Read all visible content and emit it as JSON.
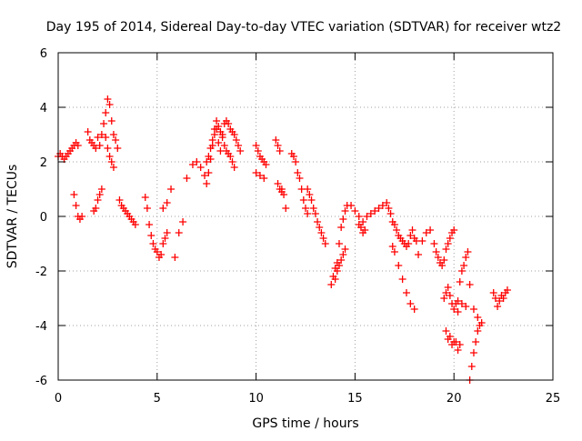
{
  "chart_data": {
    "type": "scatter",
    "title": "Day 195 of 2014, Sidereal Day-to-day VTEC variation (SDTVAR) for receiver wtz2",
    "xlabel": "GPS time / hours",
    "ylabel": "SDTVAR / TECUs",
    "xlim": [
      0,
      25
    ],
    "ylim": [
      -6,
      6
    ],
    "xticks": [
      0,
      5,
      10,
      15,
      20,
      25
    ],
    "yticks": [
      -6,
      -4,
      -2,
      0,
      2,
      4,
      6
    ],
    "xtick_labels": [
      "0",
      "5",
      "10",
      "15",
      "20",
      "25"
    ],
    "ytick_labels": [
      "-6",
      "-4",
      "-2",
      "0",
      "2",
      "4",
      "6"
    ],
    "grid": true,
    "marker": "plus",
    "color": "#ff0000",
    "series": [
      {
        "name": "SDTVAR",
        "x": [
          0.0,
          0.1,
          0.2,
          0.3,
          0.4,
          0.5,
          0.6,
          0.7,
          0.8,
          0.9,
          1.0,
          0.8,
          0.9,
          1.0,
          1.1,
          1.2,
          1.5,
          1.6,
          1.7,
          1.8,
          1.9,
          2.0,
          2.1,
          2.2,
          2.3,
          2.4,
          2.5,
          2.6,
          2.7,
          2.8,
          2.9,
          3.0,
          1.8,
          1.9,
          2.0,
          2.1,
          2.2,
          2.4,
          2.5,
          2.6,
          2.7,
          2.8,
          3.1,
          3.2,
          3.3,
          3.4,
          3.5,
          3.6,
          3.7,
          3.8,
          3.9,
          4.4,
          4.5,
          4.6,
          4.7,
          4.8,
          4.9,
          5.0,
          5.1,
          5.2,
          5.3,
          5.4,
          5.5,
          5.3,
          5.5,
          5.7,
          5.9,
          6.1,
          6.3,
          6.5,
          6.8,
          7.0,
          7.2,
          7.4,
          7.5,
          7.6,
          7.7,
          7.8,
          7.9,
          8.0,
          8.1,
          8.2,
          8.3,
          8.4,
          8.5,
          8.6,
          8.7,
          8.8,
          8.9,
          9.0,
          9.1,
          9.2,
          7.5,
          7.6,
          7.7,
          7.8,
          7.9,
          8.0,
          8.1,
          8.2,
          8.3,
          8.4,
          8.5,
          8.6,
          8.7,
          8.8,
          8.9,
          10.0,
          10.1,
          10.2,
          10.3,
          10.4,
          10.5,
          10.0,
          10.2,
          10.4,
          11.0,
          11.1,
          11.2,
          11.3,
          11.4,
          11.5,
          11.1,
          11.2,
          11.3,
          11.8,
          11.9,
          12.0,
          12.1,
          12.2,
          12.3,
          12.4,
          12.5,
          12.6,
          12.6,
          12.7,
          12.8,
          12.9,
          13.0,
          13.1,
          13.2,
          13.3,
          13.4,
          13.5,
          13.8,
          13.9,
          14.0,
          14.1,
          14.2,
          14.3,
          14.4,
          14.5,
          14.6,
          14.8,
          15.0,
          15.2,
          15.4,
          15.6,
          14.0,
          14.1,
          14.2,
          14.3,
          14.4,
          14.5,
          15.2,
          15.3,
          15.4,
          15.5,
          15.8,
          16.0,
          16.2,
          16.4,
          16.6,
          16.7,
          16.8,
          16.9,
          17.0,
          17.1,
          17.2,
          17.3,
          17.4,
          17.5,
          17.6,
          17.7,
          17.8,
          17.9,
          18.0,
          18.1,
          16.9,
          17.0,
          17.2,
          17.4,
          17.6,
          17.8,
          18.0,
          18.2,
          18.4,
          18.6,
          18.8,
          19.0,
          19.1,
          19.2,
          19.3,
          19.4,
          19.5,
          19.6,
          19.7,
          19.8,
          19.9,
          20.0,
          19.5,
          19.6,
          19.7,
          19.8,
          19.9,
          20.0,
          20.1,
          20.2,
          20.3,
          20.4,
          20.5,
          20.6,
          20.7,
          19.6,
          19.7,
          19.8,
          19.9,
          20.0,
          20.1,
          20.2,
          20.3,
          20.8,
          20.9,
          21.0,
          21.1,
          21.2,
          21.3,
          21.4,
          20.2,
          20.4,
          20.6,
          20.8,
          21.0,
          21.2,
          22.0,
          22.1,
          22.2,
          22.3,
          22.4,
          22.5,
          22.6,
          22.7
        ],
        "y": [
          2.2,
          2.3,
          2.2,
          2.1,
          2.2,
          2.3,
          2.4,
          2.5,
          2.6,
          2.7,
          2.6,
          0.8,
          0.4,
          0.0,
          -0.1,
          0.0,
          3.1,
          2.8,
          2.7,
          2.6,
          2.5,
          2.9,
          2.6,
          3.0,
          3.4,
          3.8,
          4.3,
          4.1,
          3.5,
          3.0,
          2.8,
          2.5,
          0.2,
          0.3,
          0.6,
          0.8,
          1.0,
          2.9,
          2.5,
          2.2,
          2.0,
          1.8,
          0.6,
          0.4,
          0.3,
          0.2,
          0.1,
          0.0,
          -0.1,
          -0.2,
          -0.3,
          0.7,
          0.3,
          -0.3,
          -0.7,
          -1.0,
          -1.2,
          -1.3,
          -1.5,
          -1.4,
          -1.0,
          -0.8,
          -0.6,
          0.3,
          0.5,
          1.0,
          -1.5,
          -0.6,
          -0.2,
          1.4,
          1.9,
          2.0,
          1.8,
          1.5,
          1.2,
          1.6,
          2.1,
          2.6,
          3.2,
          3.5,
          2.7,
          2.4,
          3.0,
          3.4,
          3.5,
          3.4,
          3.2,
          3.1,
          3.0,
          2.8,
          2.6,
          2.4,
          2.0,
          2.2,
          2.5,
          2.8,
          3.0,
          3.2,
          3.3,
          3.1,
          2.9,
          2.6,
          2.4,
          2.3,
          2.2,
          2.0,
          1.8,
          2.6,
          2.4,
          2.2,
          2.1,
          2.0,
          1.9,
          1.6,
          1.5,
          1.4,
          2.8,
          2.6,
          2.4,
          1.0,
          0.8,
          0.3,
          1.2,
          1.0,
          0.9,
          2.3,
          2.2,
          2.0,
          1.6,
          1.4,
          1.0,
          0.6,
          0.3,
          0.1,
          1.0,
          0.8,
          0.6,
          0.3,
          0.1,
          -0.2,
          -0.4,
          -0.6,
          -0.8,
          -1.0,
          -2.5,
          -2.2,
          -1.9,
          -1.7,
          -1.0,
          -0.4,
          -0.1,
          0.2,
          0.4,
          0.4,
          0.2,
          0.0,
          -0.2,
          0.0,
          -2.3,
          -2.0,
          -1.8,
          -1.6,
          -1.4,
          -1.2,
          -0.3,
          -0.4,
          -0.6,
          -0.5,
          0.1,
          0.2,
          0.3,
          0.4,
          0.5,
          0.3,
          0.1,
          -0.2,
          -0.3,
          -0.5,
          -0.7,
          -0.8,
          -0.9,
          -1.0,
          -1.1,
          -1.0,
          -0.7,
          -0.5,
          -0.8,
          -0.9,
          -1.1,
          -1.3,
          -1.8,
          -2.3,
          -2.8,
          -3.2,
          -3.4,
          -1.4,
          -0.9,
          -0.6,
          -0.5,
          -1.0,
          -1.3,
          -1.5,
          -1.7,
          -1.8,
          -1.6,
          -1.2,
          -1.0,
          -0.8,
          -0.6,
          -0.5,
          -3.0,
          -2.8,
          -2.6,
          -2.9,
          -3.2,
          -3.4,
          -3.2,
          -3.5,
          -2.4,
          -2.0,
          -1.8,
          -1.5,
          -1.3,
          -4.2,
          -4.5,
          -4.4,
          -4.7,
          -4.6,
          -4.6,
          -4.9,
          -4.7,
          -6.0,
          -5.5,
          -5.0,
          -4.6,
          -4.2,
          -4.0,
          -3.9,
          -3.1,
          -3.2,
          -3.3,
          -2.5,
          -3.4,
          -3.7,
          -2.8,
          -3.0,
          -3.3,
          -3.1,
          -2.9,
          -3.0,
          -2.8,
          -2.7
        ]
      }
    ]
  }
}
